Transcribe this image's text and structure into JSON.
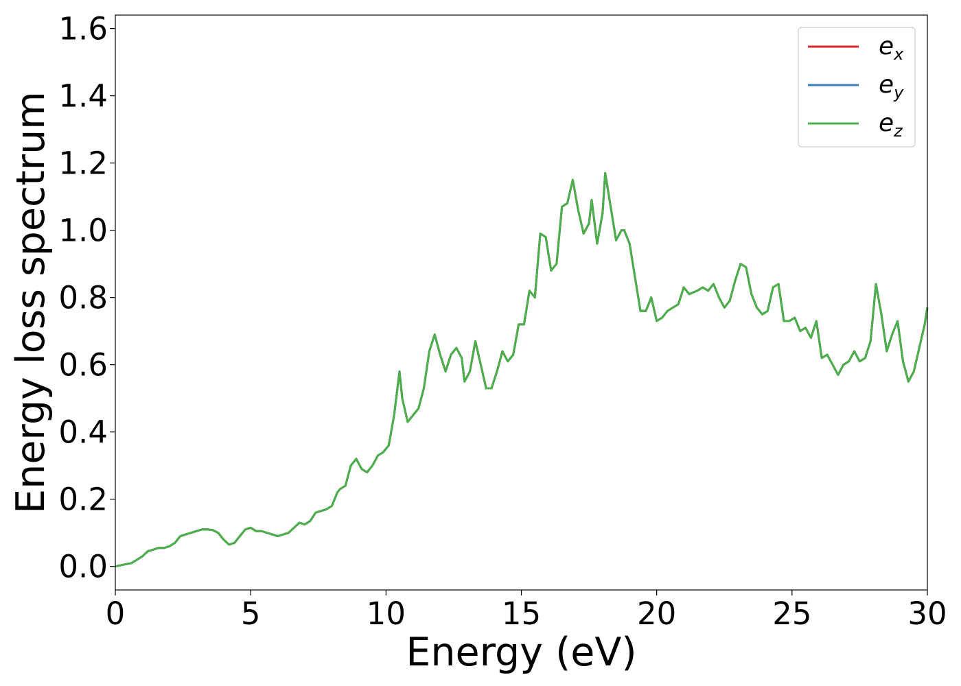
{
  "chart_data": {
    "type": "line",
    "title": "",
    "xlabel": "Energy (eV)",
    "ylabel": "Energy loss spectrum",
    "xlim": [
      0,
      30
    ],
    "ylim": [
      -0.07,
      1.64
    ],
    "xticks": [
      "0",
      "5",
      "10",
      "15",
      "20",
      "25",
      "30"
    ],
    "yticks": [
      "0.0",
      "0.2",
      "0.4",
      "0.6",
      "0.8",
      "1.0",
      "1.2",
      "1.4",
      "1.6"
    ],
    "grid": false,
    "legend_position": "top-right",
    "colors": {
      "ex": "#d62728",
      "ey": "#377eb8",
      "ez": "#4daf4a"
    },
    "legend": [
      {
        "base": "e",
        "sub": "x",
        "color": "#d62728"
      },
      {
        "base": "e",
        "sub": "y",
        "color": "#377eb8"
      },
      {
        "base": "e",
        "sub": "z",
        "color": "#4daf4a"
      }
    ],
    "x": [
      0.0,
      0.3,
      0.6,
      1.0,
      1.2,
      1.4,
      1.6,
      1.8,
      2.0,
      2.2,
      2.4,
      2.6,
      2.8,
      3.0,
      3.2,
      3.4,
      3.6,
      3.8,
      4.0,
      4.2,
      4.4,
      4.6,
      4.8,
      5.0,
      5.2,
      5.4,
      5.6,
      5.8,
      6.0,
      6.2,
      6.4,
      6.6,
      6.8,
      7.0,
      7.2,
      7.4,
      7.6,
      7.8,
      8.0,
      8.2,
      8.3,
      8.5,
      8.7,
      8.9,
      9.1,
      9.3,
      9.5,
      9.7,
      9.9,
      10.1,
      10.3,
      10.5,
      10.6,
      10.8,
      11.0,
      11.2,
      11.4,
      11.6,
      11.8,
      12.0,
      12.2,
      12.4,
      12.6,
      12.8,
      12.9,
      13.1,
      13.3,
      13.5,
      13.7,
      13.9,
      14.1,
      14.3,
      14.5,
      14.7,
      14.9,
      15.1,
      15.3,
      15.5,
      15.7,
      15.9,
      16.1,
      16.3,
      16.5,
      16.7,
      16.9,
      17.1,
      17.3,
      17.5,
      17.6,
      17.8,
      18.0,
      18.1,
      18.3,
      18.5,
      18.7,
      18.8,
      19.0,
      19.2,
      19.4,
      19.6,
      19.8,
      20.0,
      20.2,
      20.4,
      20.6,
      20.8,
      21.0,
      21.2,
      21.5,
      21.7,
      21.9,
      22.1,
      22.3,
      22.5,
      22.7,
      22.9,
      23.1,
      23.3,
      23.5,
      23.7,
      23.9,
      24.1,
      24.3,
      24.5,
      24.7,
      24.9,
      25.1,
      25.3,
      25.5,
      25.7,
      25.9,
      26.1,
      26.3,
      26.5,
      26.7,
      26.9,
      27.1,
      27.3,
      27.5,
      27.7,
      27.9,
      28.1,
      28.3,
      28.5,
      28.7,
      28.9,
      29.1,
      29.3,
      29.5,
      29.7,
      29.9,
      30.0
    ],
    "y": [
      0.0,
      0.005,
      0.01,
      0.03,
      0.045,
      0.05,
      0.055,
      0.055,
      0.06,
      0.07,
      0.09,
      0.095,
      0.1,
      0.105,
      0.11,
      0.11,
      0.108,
      0.1,
      0.08,
      0.065,
      0.07,
      0.09,
      0.11,
      0.115,
      0.105,
      0.105,
      0.1,
      0.095,
      0.09,
      0.095,
      0.1,
      0.115,
      0.13,
      0.125,
      0.135,
      0.16,
      0.165,
      0.17,
      0.18,
      0.22,
      0.23,
      0.24,
      0.3,
      0.32,
      0.29,
      0.28,
      0.3,
      0.33,
      0.34,
      0.36,
      0.45,
      0.58,
      0.5,
      0.43,
      0.45,
      0.47,
      0.53,
      0.64,
      0.69,
      0.63,
      0.58,
      0.63,
      0.65,
      0.62,
      0.55,
      0.58,
      0.67,
      0.6,
      0.53,
      0.53,
      0.58,
      0.64,
      0.61,
      0.63,
      0.72,
      0.72,
      0.82,
      0.8,
      0.99,
      0.98,
      0.88,
      0.9,
      1.07,
      1.08,
      1.15,
      1.06,
      0.99,
      1.02,
      1.09,
      0.96,
      1.05,
      1.17,
      1.07,
      0.97,
      1.0,
      1.0,
      0.96,
      0.86,
      0.76,
      0.76,
      0.8,
      0.73,
      0.74,
      0.76,
      0.77,
      0.78,
      0.83,
      0.81,
      0.82,
      0.83,
      0.82,
      0.84,
      0.8,
      0.77,
      0.79,
      0.85,
      0.9,
      0.89,
      0.81,
      0.77,
      0.75,
      0.76,
      0.83,
      0.84,
      0.73,
      0.73,
      0.74,
      0.7,
      0.71,
      0.68,
      0.73,
      0.62,
      0.63,
      0.6,
      0.57,
      0.6,
      0.61,
      0.64,
      0.61,
      0.62,
      0.67,
      0.84,
      0.75,
      0.64,
      0.69,
      0.73,
      0.61,
      0.55,
      0.58,
      0.65,
      0.72,
      0.77
    ]
  }
}
